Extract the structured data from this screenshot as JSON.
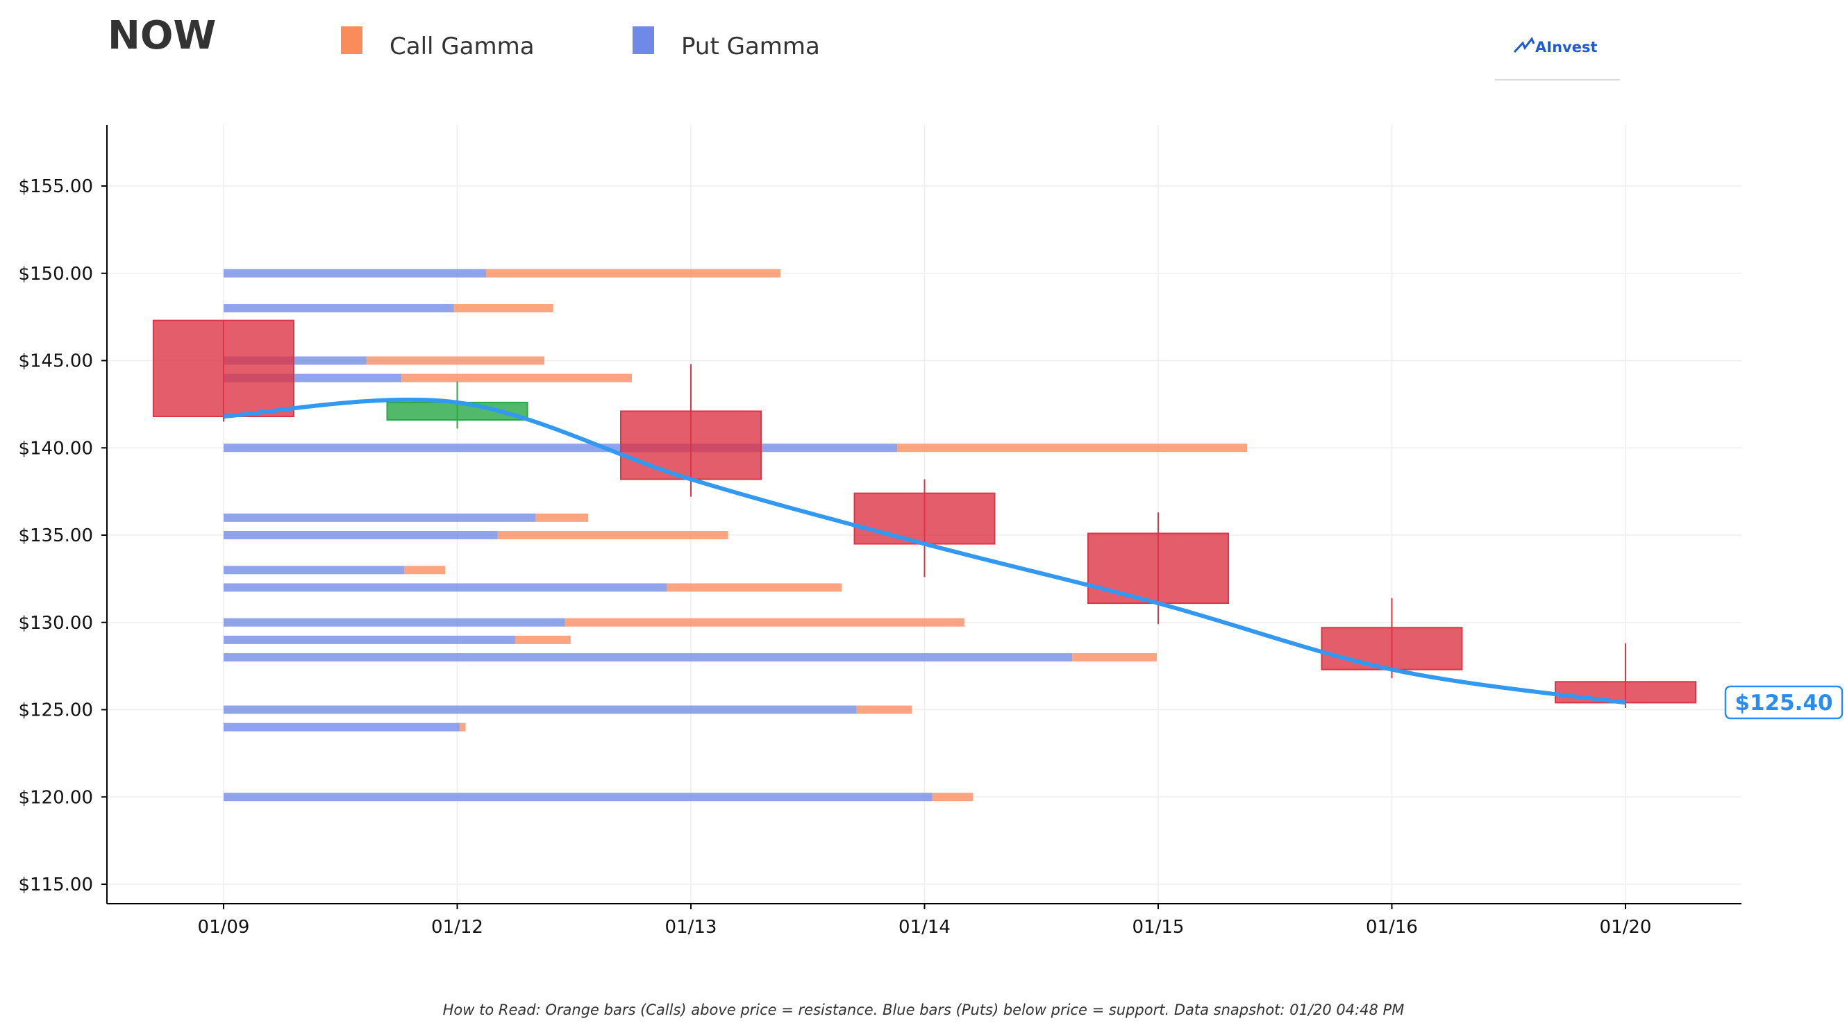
{
  "header": {
    "ticker": "NOW",
    "logo_text": "AInvest"
  },
  "legend": {
    "call_label": "Call Gamma",
    "put_label": "Put Gamma"
  },
  "footer": {
    "note": "How to Read: Orange bars (Calls) above price = resistance. Blue bars (Puts) below price = support. Data snapshot: 01/20 04:48 PM"
  },
  "last_price_label": "$125.40",
  "colors": {
    "call": "#fa8c5c",
    "put": "#6f8ae6",
    "bear_candle": "#dc3545",
    "bull_candle": "#28a745",
    "price_line": "#3399f0",
    "price_label": "#2b8cf0"
  },
  "chart_data": {
    "type": "candlestick",
    "title": "",
    "ylim": [
      114,
      159
    ],
    "y_ticks": [
      "$115.00",
      "$120.00",
      "$125.00",
      "$130.00",
      "$135.00",
      "$140.00",
      "$145.00",
      "$150.00",
      "$155.00"
    ],
    "y_tick_values": [
      115,
      120,
      125,
      130,
      135,
      140,
      145,
      150,
      155
    ],
    "categories": [
      "01/09",
      "01/12",
      "01/13",
      "01/14",
      "01/15",
      "01/16",
      "01/20"
    ],
    "candles": [
      {
        "date": "01/09",
        "open": 147.3,
        "high": 147.3,
        "low": 141.5,
        "close": 141.8
      },
      {
        "date": "01/12",
        "open": 141.6,
        "high": 143.8,
        "low": 141.1,
        "close": 142.6
      },
      {
        "date": "01/13",
        "open": 142.1,
        "high": 144.8,
        "low": 137.2,
        "close": 138.2
      },
      {
        "date": "01/14",
        "open": 137.4,
        "high": 138.2,
        "low": 132.6,
        "close": 134.5
      },
      {
        "date": "01/15",
        "open": 135.1,
        "high": 136.3,
        "low": 129.9,
        "close": 131.1
      },
      {
        "date": "01/16",
        "open": 129.7,
        "high": 131.4,
        "low": 126.8,
        "close": 127.3
      },
      {
        "date": "01/20",
        "open": 126.6,
        "high": 128.8,
        "low": 125.1,
        "close": 125.4
      }
    ],
    "price_line": [
      141.8,
      142.6,
      138.2,
      134.5,
      131.1,
      127.3,
      125.4
    ],
    "gamma_levels": [
      {
        "strike": 150,
        "put": 0.9,
        "call": 1.01
      },
      {
        "strike": 148,
        "put": 0.79,
        "call": 0.34
      },
      {
        "strike": 145,
        "put": 0.49,
        "call": 0.61
      },
      {
        "strike": 144,
        "put": 0.61,
        "call": 0.79
      },
      {
        "strike": 140,
        "put": 2.31,
        "call": 1.2
      },
      {
        "strike": 136,
        "put": 1.07,
        "call": 0.18
      },
      {
        "strike": 135,
        "put": 0.94,
        "call": 0.79
      },
      {
        "strike": 133,
        "put": 0.62,
        "call": 0.14
      },
      {
        "strike": 132,
        "put": 1.52,
        "call": 0.6
      },
      {
        "strike": 130,
        "put": 1.17,
        "call": 1.37
      },
      {
        "strike": 129,
        "put": 1.0,
        "call": 0.19
      },
      {
        "strike": 128,
        "put": 2.91,
        "call": 0.29
      },
      {
        "strike": 125,
        "put": 2.17,
        "call": 0.19
      },
      {
        "strike": 124,
        "put": 0.81,
        "call": 0.02
      },
      {
        "strike": 120,
        "put": 2.43,
        "call": 0.14
      }
    ],
    "grid": true,
    "legend_position": "top-left"
  }
}
